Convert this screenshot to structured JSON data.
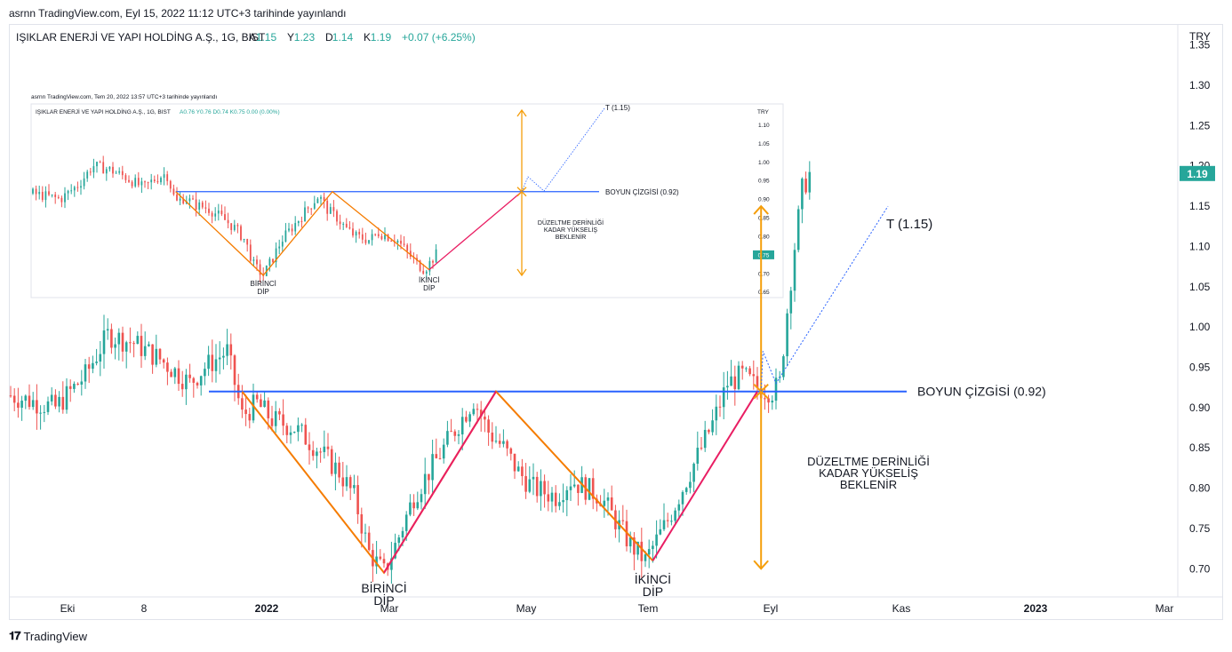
{
  "header": {
    "published": "asrnn TradingView.com, Eyl 15, 2022 11:12 UTC+3 tarihinde yayınlandı"
  },
  "footer": {
    "brand": "TradingView"
  },
  "chart_data": {
    "type": "candlestick",
    "symbol": "IŞIKLAR ENERJİ VE YAPI HOLDİNG A.Ş., 1G, BIST",
    "ohlc": {
      "open_label": "A",
      "open": "1.15",
      "high_label": "Y",
      "high": "1.23",
      "low_label": "D",
      "low": "1.14",
      "close_label": "K",
      "close": "1.19",
      "change": "+0.07 (+6.25%)"
    },
    "currency": "TRY",
    "last_price": "1.19",
    "y_axis": {
      "ticks": [
        "1.35",
        "1.30",
        "1.25",
        "1.20",
        "1.15",
        "1.10",
        "1.05",
        "1.00",
        "0.95",
        "0.90",
        "0.85",
        "0.80",
        "0.75",
        "0.70"
      ],
      "range": [
        0.665,
        1.375
      ]
    },
    "x_axis": {
      "ticks": [
        "Eki",
        "8",
        "2022",
        "Mar",
        "May",
        "Tem",
        "Eyl",
        "Kas",
        "2023",
        "Mar"
      ]
    },
    "price_path": [
      [
        0,
        0.915
      ],
      [
        12,
        0.9
      ],
      [
        20,
        0.94
      ],
      [
        26,
        0.99
      ],
      [
        33,
        0.98
      ],
      [
        40,
        0.96
      ],
      [
        48,
        0.93
      ],
      [
        52,
        0.95
      ],
      [
        58,
        0.97
      ],
      [
        62,
        0.89
      ],
      [
        66,
        0.905
      ],
      [
        70,
        0.885
      ],
      [
        76,
        0.875
      ],
      [
        82,
        0.85
      ],
      [
        88,
        0.82
      ],
      [
        92,
        0.79
      ],
      [
        96,
        0.72
      ],
      [
        100,
        0.695
      ],
      [
        104,
        0.74
      ],
      [
        108,
        0.79
      ],
      [
        112,
        0.82
      ],
      [
        116,
        0.85
      ],
      [
        120,
        0.88
      ],
      [
        124,
        0.91
      ],
      [
        128,
        0.87
      ],
      [
        132,
        0.85
      ],
      [
        136,
        0.82
      ],
      [
        140,
        0.8
      ],
      [
        146,
        0.79
      ],
      [
        150,
        0.81
      ],
      [
        154,
        0.8
      ],
      [
        158,
        0.79
      ],
      [
        162,
        0.76
      ],
      [
        166,
        0.73
      ],
      [
        170,
        0.71
      ],
      [
        176,
        0.76
      ],
      [
        180,
        0.8
      ],
      [
        184,
        0.84
      ],
      [
        188,
        0.88
      ],
      [
        192,
        0.93
      ],
      [
        196,
        0.94
      ],
      [
        200,
        0.925
      ],
      [
        204,
        0.92
      ],
      [
        206,
        0.93
      ],
      [
        208,
        1.02
      ],
      [
        210,
        1.1
      ],
      [
        212,
        1.17
      ],
      [
        214,
        1.19
      ]
    ],
    "annotations": {
      "neckline": "BOYUN ÇİZGİSİ (0.92)",
      "neckline_value": 0.92,
      "target": "T (1.15)",
      "target_value": 1.15,
      "correction_text": [
        "DÜZELTME DERİNLİĞİ",
        "KADAR YÜKSELİŞ",
        "BEKLENİR"
      ],
      "first_dip": [
        "BİRİNCİ",
        "DİP"
      ],
      "second_dip": [
        "İKİNCİ",
        "DİP"
      ]
    },
    "inset": {
      "published": "asrnn TradingView.com, Tem 20, 2022 13:57 UTC+3 tarihinde yayınlandı",
      "symbol": "IŞIKLAR ENERJİ VE YAPI HOLDİNG A.Ş., 1G, BIST",
      "ohlc": "A0.76 Y0.76 D0.74 K0.75 0.00 (0.00%)",
      "currency": "TRY",
      "y_ticks": [
        "1.10",
        "1.05",
        "1.00",
        "0.95",
        "0.90",
        "0.85",
        "0.80",
        "0.75",
        "0.70",
        "0.65"
      ],
      "last_price": "0.75",
      "neckline": "BOYUN ÇİZGİSİ (0.92)",
      "target": "T (1.15)",
      "correction_text": [
        "DÜZELTME DERİNLİĞİ",
        "KADAR YÜKSELİŞ",
        "BEKLENİR"
      ],
      "first_dip": [
        "BİRİNCİ",
        "DİP"
      ],
      "second_dip": [
        "İKİNCİ",
        "DİP"
      ]
    }
  },
  "colors": {
    "up": "#26a69a",
    "down": "#ef5350",
    "neckline": "#2962ff",
    "pattern": "#f57c00",
    "rise": "#e91e63",
    "arrow": "#f59e0b",
    "target_path": "#2962ff"
  }
}
